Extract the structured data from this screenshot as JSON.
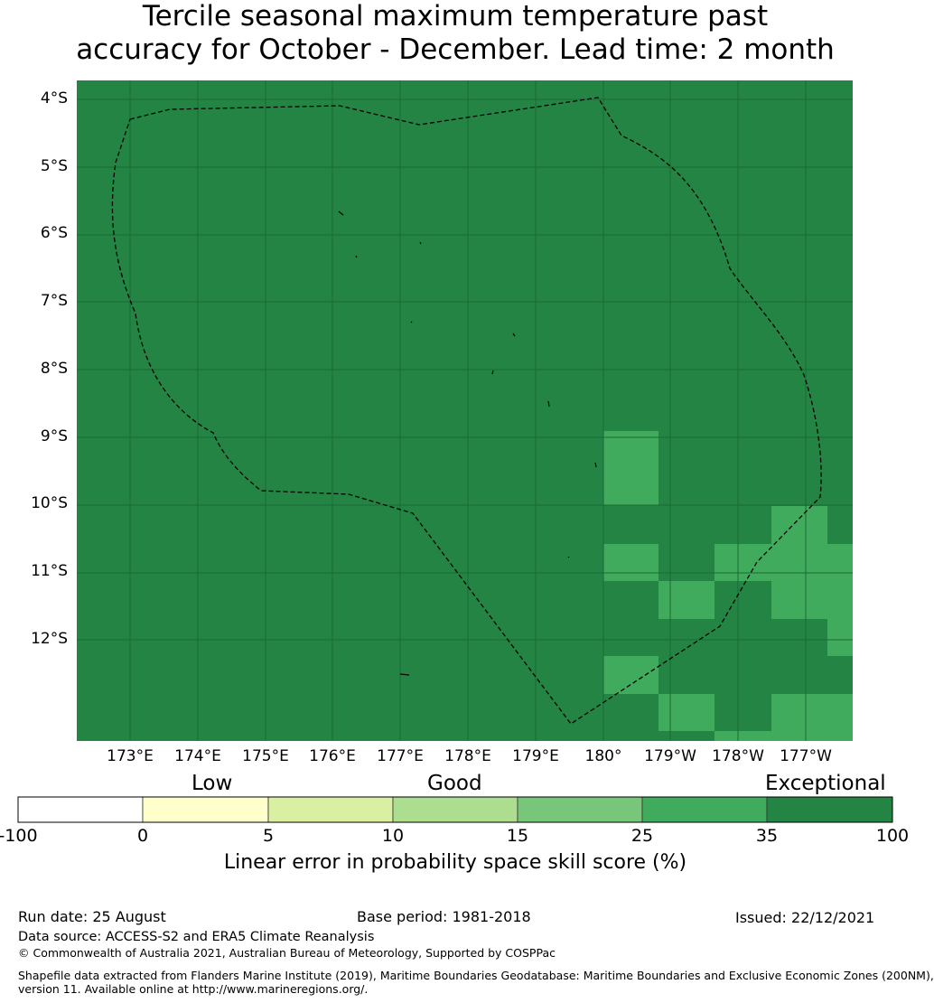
{
  "title": {
    "line1": "Tercile seasonal maximum temperature past",
    "line2": "accuracy for October - December. Lead time: 2 month"
  },
  "map": {
    "base_color": "#238443",
    "gridline_color": "#1a6a34",
    "lat_labels": [
      "4°S",
      "5°S",
      "6°S",
      "7°S",
      "8°S",
      "9°S",
      "10°S",
      "11°S",
      "12°S"
    ],
    "lon_labels": [
      "173°E",
      "174°E",
      "175°E",
      "176°E",
      "177°E",
      "178°E",
      "179°E",
      "180°",
      "179°W",
      "178°W",
      "177°W"
    ],
    "lighter_cell_color": "#41ab5d"
  },
  "colorbar": {
    "categories": [
      "Low",
      "Good",
      "Exceptional"
    ],
    "ticks": [
      "-100",
      "0",
      "5",
      "10",
      "15",
      "25",
      "35",
      "100"
    ],
    "colors": [
      "#ffffff",
      "#ffffcc",
      "#d9f0a3",
      "#addd8e",
      "#78c679",
      "#41ab5d",
      "#238443"
    ],
    "label": "Linear error in probability space skill score (%)"
  },
  "footer": {
    "run_date": "Run date: 25 August",
    "base_period": "Base period: 1981-2018",
    "issued": "Issued: 22/12/2021",
    "data_source": "Data source: ACCESS-S2 and ERA5 Climate Reanalysis",
    "copyright": "© Commonwealth of Australia 2021, Australian Bureau of Meteorology, Supported by COSPPac",
    "shapefile_line1": "Shapefile data extracted from Flanders Marine Institute (2019), Maritime Boundaries Geodatabase: Maritime Boundaries and Exclusive Economic Zones (200NM),",
    "shapefile_line2": "version 11. Available online at http://www.marineregions.org/."
  }
}
